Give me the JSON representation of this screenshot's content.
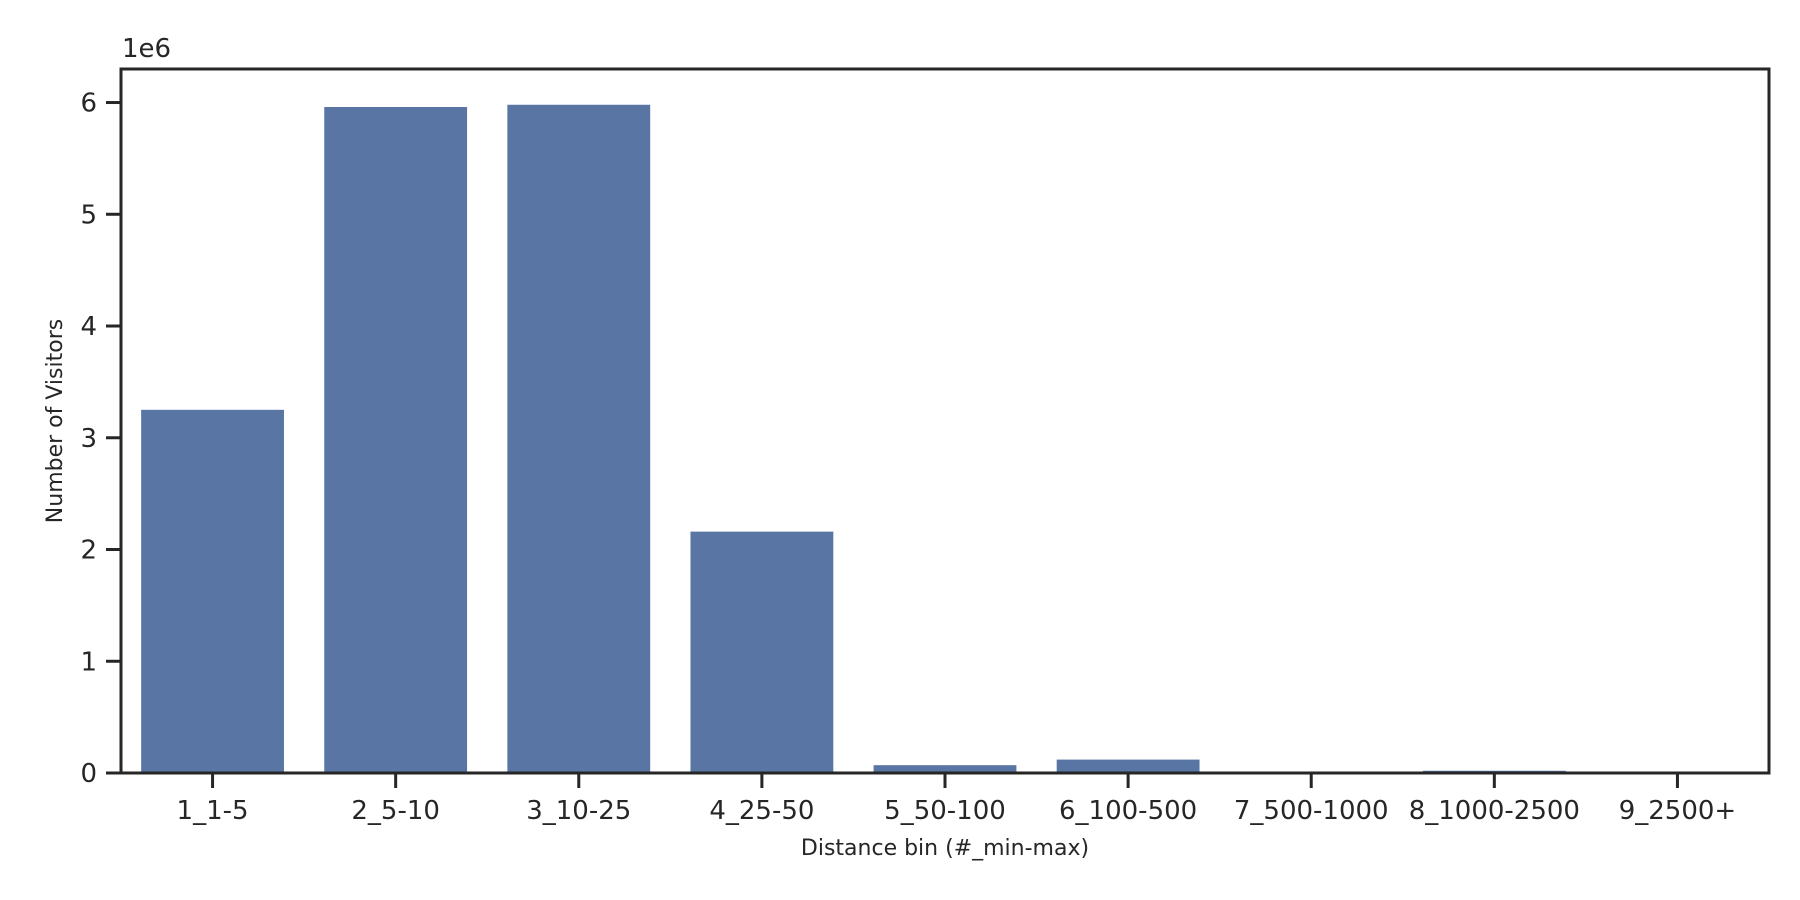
{
  "chart_data": {
    "type": "bar",
    "title": "",
    "xlabel": "Distance bin (#_min-max)",
    "ylabel": "Number of Visitors",
    "y_scale_label": "1e6",
    "categories": [
      "1_1-5",
      "2_5-10",
      "3_10-25",
      "4_25-50",
      "5_50-100",
      "6_100-500",
      "7_500-1000",
      "8_1000-2500",
      "9_2500+"
    ],
    "values": [
      3250000,
      5960000,
      5980000,
      2160000,
      70000,
      120000,
      5000,
      20000,
      3000
    ],
    "ylim": [
      0,
      6300000
    ],
    "yticks": [
      0,
      1000000,
      2000000,
      3000000,
      4000000,
      5000000,
      6000000
    ],
    "ytick_labels": [
      "0",
      "1",
      "2",
      "3",
      "4",
      "5",
      "6"
    ],
    "bar_color": "#5875a4",
    "axis_color": "#262626",
    "grid": false,
    "legend": "none"
  }
}
